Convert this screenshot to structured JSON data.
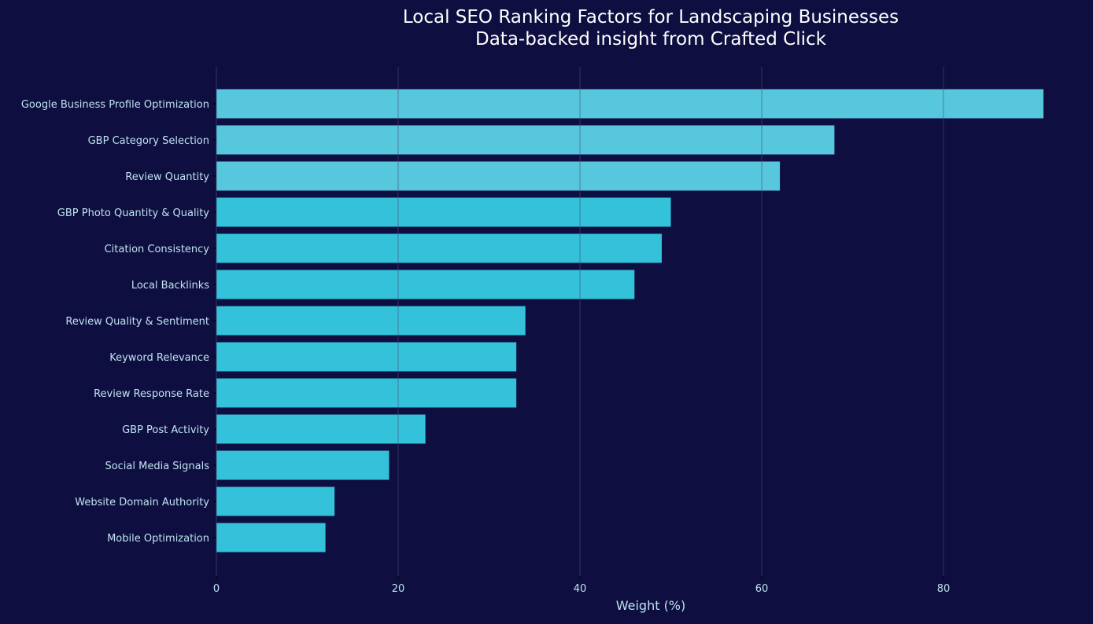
{
  "chart_data": {
    "type": "bar",
    "orientation": "horizontal",
    "title": "Local SEO Ranking Factors for Landscaping Businesses",
    "subtitle": "Data-backed insight from Crafted Click",
    "xlabel": "Weight (%)",
    "ylabel": "",
    "xlim": [
      0,
      95.55
    ],
    "xticks": [
      0,
      20,
      40,
      60,
      80
    ],
    "grid": "vertical",
    "categories": [
      "Google Business Profile Optimization",
      "GBP Category Selection",
      "Review Quantity",
      "GBP Photo Quantity & Quality",
      "Citation Consistency",
      "Local Backlinks",
      "Review Quality & Sentiment",
      "Keyword Relevance",
      "Review Response Rate",
      "GBP Post Activity",
      "Social Media Signals",
      "Website Domain Authority",
      "Mobile Optimization"
    ],
    "values": [
      91,
      68,
      62,
      50,
      49,
      46,
      34,
      33,
      33,
      23,
      19,
      13,
      12
    ],
    "highlighted_top_n": 3,
    "colors": {
      "background": "#0e0f40",
      "bar": "#33c2da",
      "bar_highlight": "#56c7dc",
      "text": "#bfe3f0",
      "title": "#ffffff",
      "grid": "#4a4d78"
    }
  }
}
